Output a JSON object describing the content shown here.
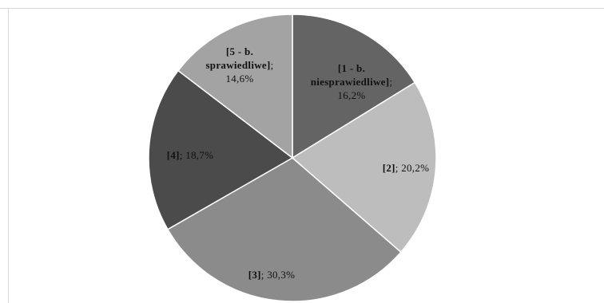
{
  "chart_data": {
    "type": "pie",
    "title": "",
    "start_angle_deg": 0,
    "direction": "clockwise",
    "slices": [
      {
        "category": "1 - b. niesprawiedliwe",
        "category_lines": [
          "[1 - b.",
          "niesprawiedliwe]"
        ],
        "value": 16.2,
        "value_text": "16,2%",
        "color": "#646464"
      },
      {
        "category": "2",
        "category_lines": [
          "[2]"
        ],
        "value": 20.2,
        "value_text": "20,2%",
        "color": "#bdbdbd"
      },
      {
        "category": "3",
        "category_lines": [
          "[3]"
        ],
        "value": 30.3,
        "value_text": "30,3%",
        "color": "#8b8b8b"
      },
      {
        "category": "4",
        "category_lines": [
          "[4]"
        ],
        "value": 18.7,
        "value_text": "18,7%",
        "color": "#4b4b4b"
      },
      {
        "category": "5 - b. sprawiedliwe",
        "category_lines": [
          "[5 - b.",
          "sprawiedliwe]"
        ],
        "value": 14.6,
        "value_text": "14,6%",
        "color": "#a3a3a3"
      }
    ],
    "legend": "none"
  }
}
